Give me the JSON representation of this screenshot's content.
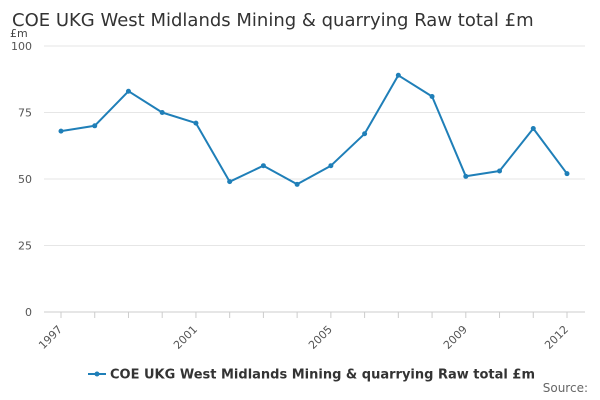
{
  "chart_data": {
    "type": "line",
    "title": "COE UKG West Midlands Mining & quarrying Raw total £m",
    "ylabel": "£m",
    "xlabel": "",
    "ylim": [
      0,
      100
    ],
    "yticks": [
      "0",
      "25",
      "50",
      "75",
      "100"
    ],
    "x": [
      1997,
      1998,
      1999,
      2000,
      2001,
      2002,
      2003,
      2004,
      2005,
      2006,
      2007,
      2008,
      2009,
      2010,
      2011,
      2012
    ],
    "xtick_labels": [
      "1997",
      "2001",
      "2005",
      "2009",
      "2012"
    ],
    "series": [
      {
        "name": "COE UKG West Midlands Mining & quarrying Raw total £m",
        "values": [
          68,
          70,
          83,
          75,
          71,
          49,
          55,
          48,
          55,
          67,
          89,
          81,
          51,
          53,
          69,
          52
        ]
      }
    ],
    "grid": true,
    "legend_position": "bottom-center",
    "colors": {
      "series": "#1f7fb8",
      "grid": "#e6e6e6",
      "axis": "#cccccc"
    },
    "source_label": "Source:"
  }
}
